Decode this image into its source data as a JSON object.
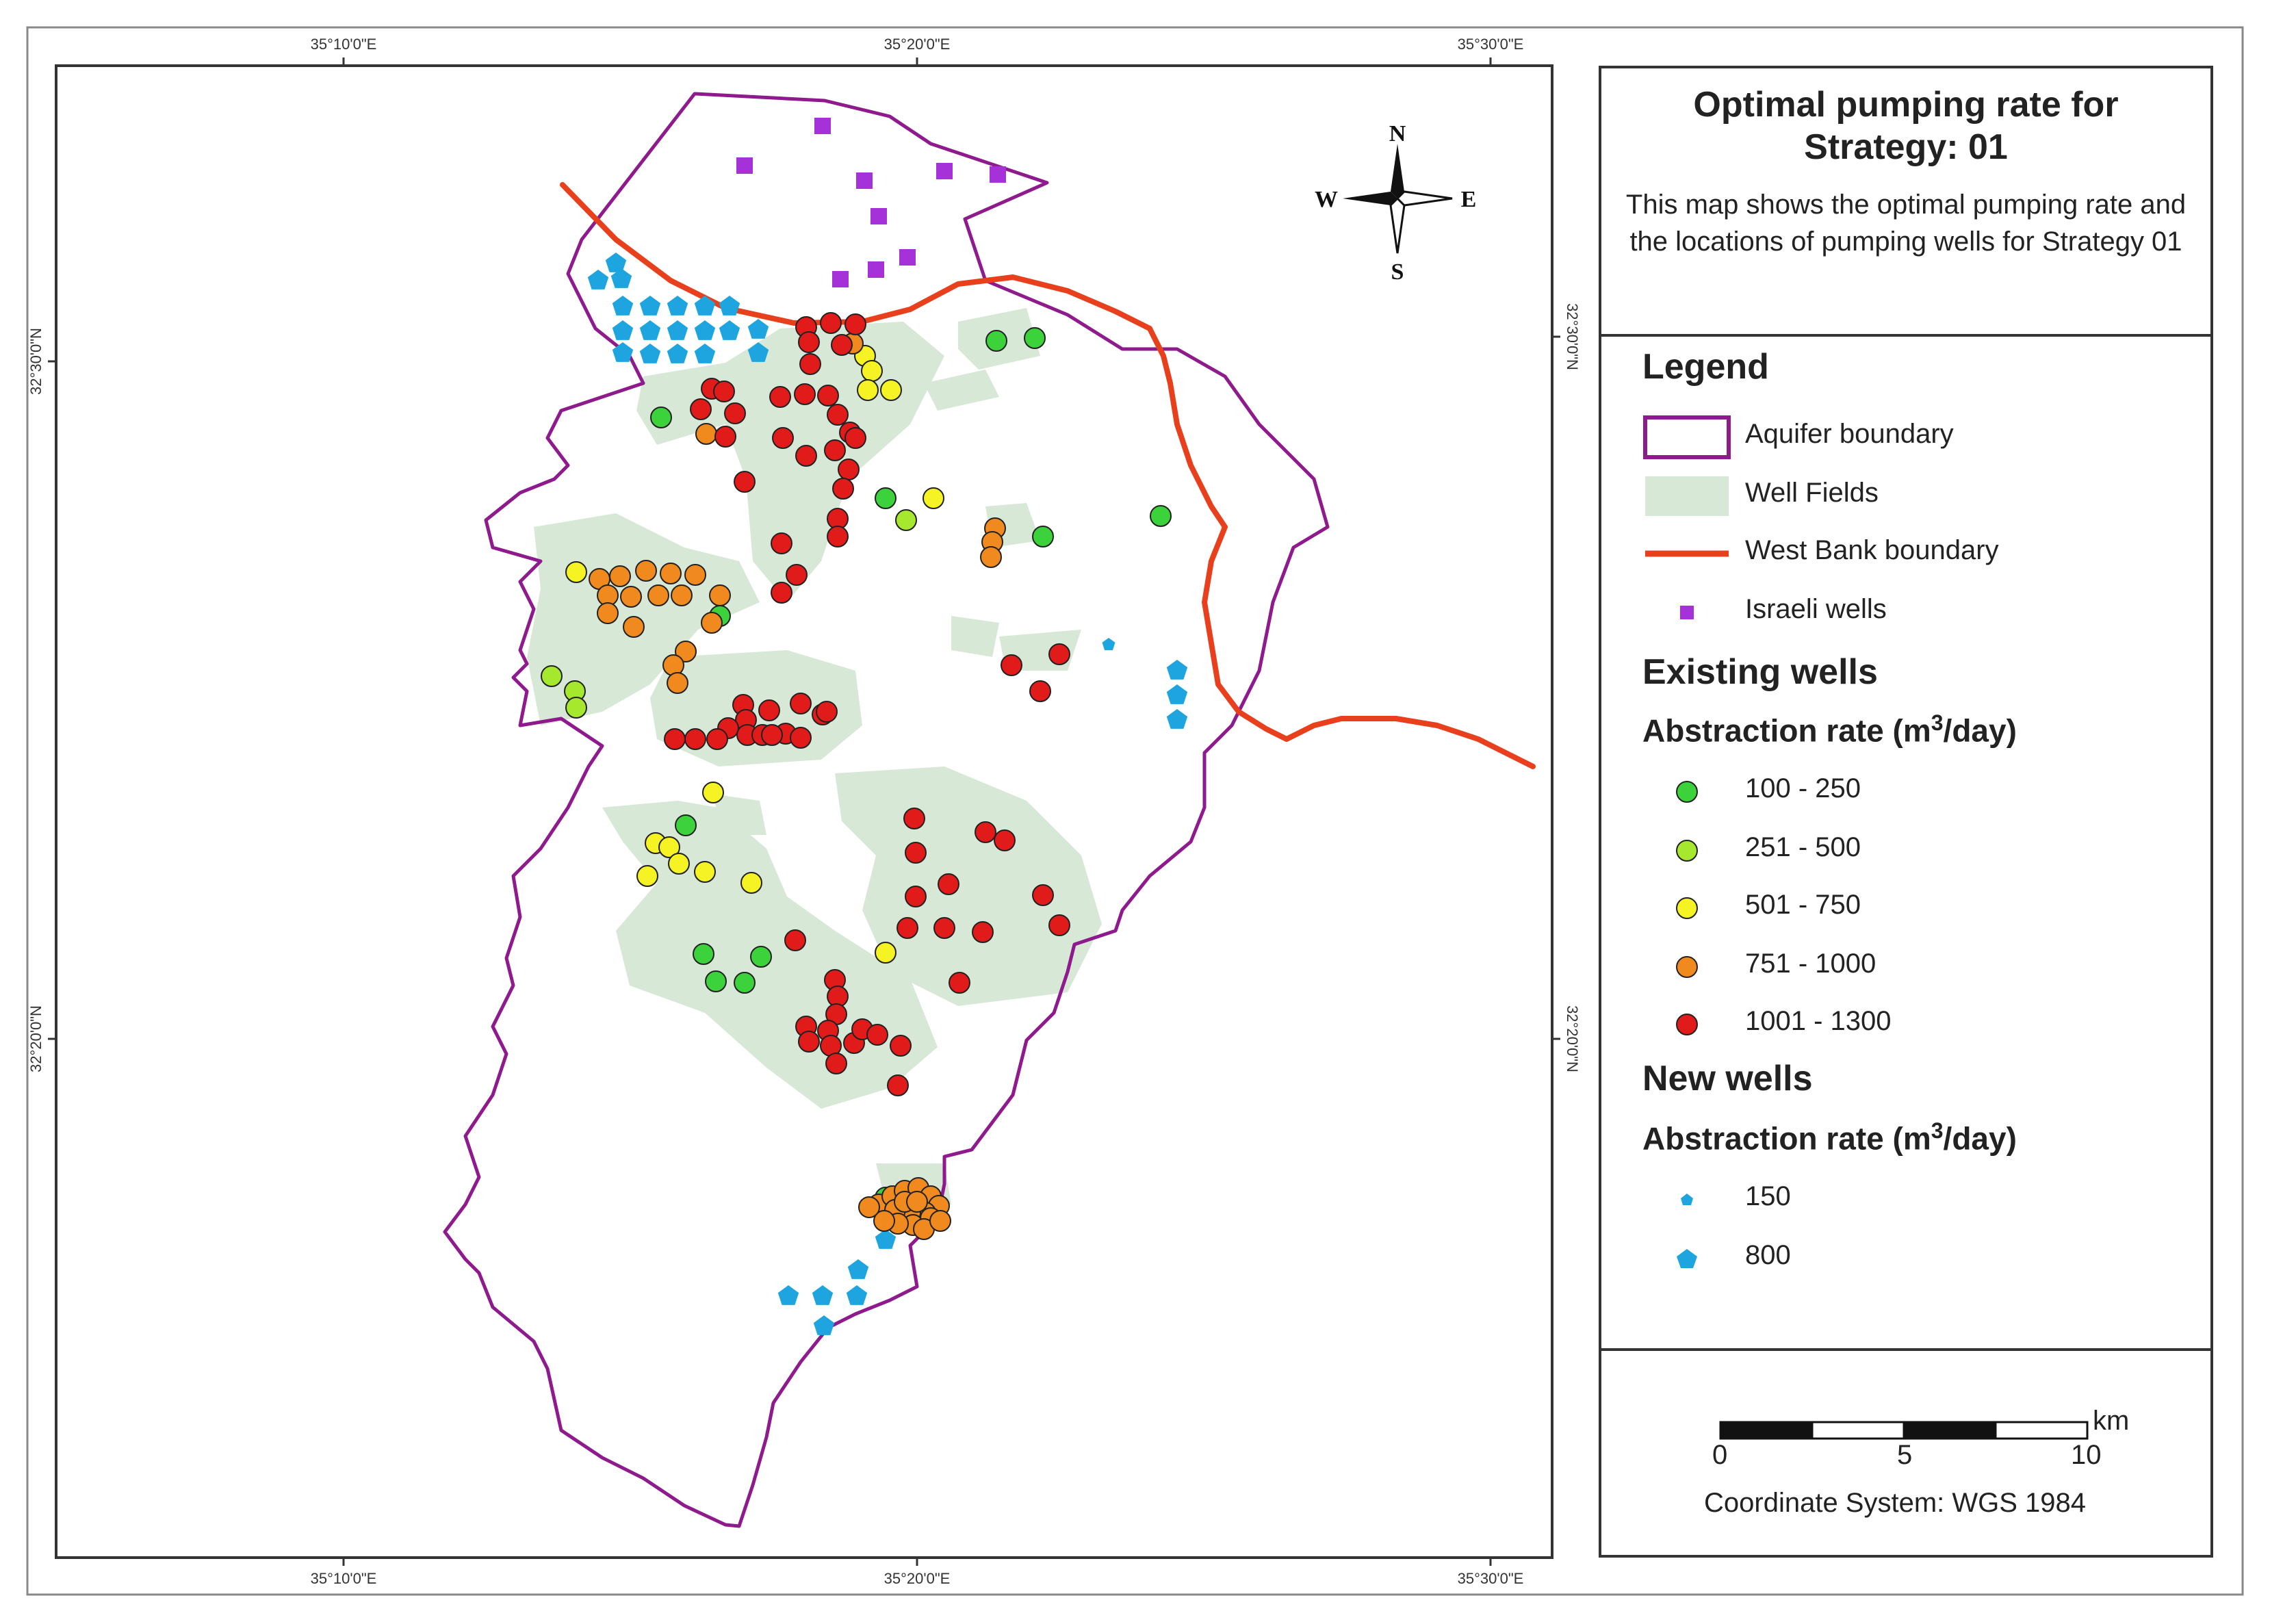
{
  "map": {
    "top_ticks": [
      "35°10'0\"E",
      "35°20'0\"E",
      "35°30'0\"E"
    ],
    "bottom_ticks": [
      "35°10'0\"E",
      "35°20'0\"E",
      "35°30'0\"E"
    ],
    "left_ticks": [
      "32°30'0\"N",
      "32°20'0\"N"
    ],
    "right_ticks": [
      "32°30'0\"N",
      "32°20'0\"N"
    ],
    "compass": {
      "n": "N",
      "s": "S",
      "e": "E",
      "w": "W"
    }
  },
  "title": "Optimal pumping rate for Strategy: 01",
  "description": "This map shows the optimal pumping rate and the locations of pumping wells for Strategy 01",
  "legend": {
    "heading": "Legend",
    "aquifer": "Aquifer boundary",
    "well_fields": "Well Fields",
    "west_bank": "West Bank boundary",
    "israeli_wells": "Israeli wells",
    "existing_heading": "Existing wells",
    "abstraction_label": "Abstraction rate (m",
    "abstraction_sup": "3",
    "abstraction_unit": "/day)",
    "existing_classes": [
      "100 - 250",
      "251 - 500",
      "501 - 750",
      "751 - 1000",
      "1001 - 1300"
    ],
    "new_heading": "New wells",
    "new_classes": [
      "150",
      "800"
    ]
  },
  "scale": {
    "unit": "km",
    "labels": [
      "0",
      "5",
      "10"
    ]
  },
  "crs": "Coordinate System: WGS 1984",
  "colors": {
    "aquifer": "#8e1a8e",
    "westbank": "#e8401c",
    "wellfield": "#d7e8d7",
    "israeli": "#a531d8",
    "class1": "#3cd23c",
    "class2": "#a6e82e",
    "class3": "#f6f324",
    "class4": "#f08a1e",
    "class5": "#e11a1a",
    "newwell": "#1ea5e0"
  }
}
